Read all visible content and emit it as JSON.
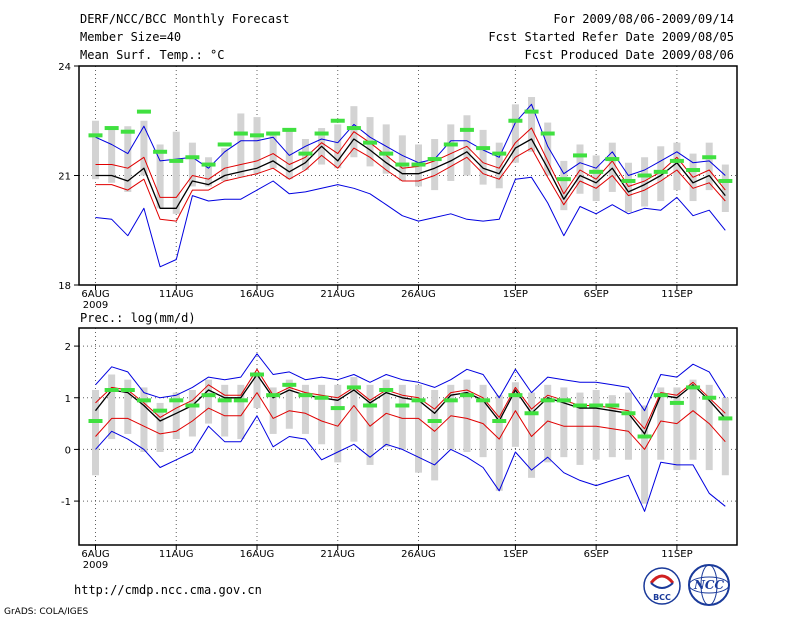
{
  "header": {
    "title": "DERF/NCC/BCC Monthly Forecast",
    "member_size": "Member Size=40",
    "variable": "Mean Surf. Temp.: °C",
    "forecast_range": "For 2009/08/06-2009/09/14",
    "fcst_started": "Fcst Started Refer Date 2009/08/05",
    "fcst_produced": "Fcst Produced Date 2009/08/06"
  },
  "footer": {
    "url": "http://cmdp.ncc.cma.gov.cn",
    "grads": "GrADS: COLA/IGES",
    "logo_bcc": "BCC",
    "logo_ncc": "NCC"
  },
  "colors": {
    "spread": "#d3d3d3",
    "median": "#40e040",
    "mean": "#000000",
    "stddev": "#e00000",
    "extreme": "#0000e0",
    "grid": "#606060"
  },
  "chart_data": [
    {
      "type": "line",
      "title": "Mean Surf. Temp.: °C",
      "ylim": [
        18,
        24
      ],
      "yticks": [
        18,
        21,
        24
      ],
      "ytick_labels": [
        "18",
        "21",
        "24"
      ],
      "xlim": [
        0,
        38
      ],
      "xticks": [
        {
          "day": 0,
          "label": "6AUG",
          "sub": "2009"
        },
        {
          "day": 5,
          "label": "11AUG",
          "sub": ""
        },
        {
          "day": 10,
          "label": "16AUG",
          "sub": ""
        },
        {
          "day": 15,
          "label": "21AUG",
          "sub": ""
        },
        {
          "day": 20,
          "label": "26AUG",
          "sub": ""
        },
        {
          "day": 26,
          "label": "1SEP",
          "sub": ""
        },
        {
          "day": 31,
          "label": "6SEP",
          "sub": ""
        },
        {
          "day": 36,
          "label": "11SEP",
          "sub": ""
        }
      ],
      "days": [
        0,
        1,
        2,
        3,
        4,
        5,
        6,
        7,
        8,
        9,
        10,
        11,
        12,
        13,
        14,
        15,
        16,
        17,
        18,
        19,
        20,
        21,
        22,
        23,
        24,
        25,
        26,
        27,
        28,
        29,
        30,
        31,
        32,
        33,
        34,
        35,
        36,
        37,
        38,
        39
      ],
      "mean": [
        21.0,
        21.0,
        20.85,
        21.2,
        20.1,
        20.1,
        20.85,
        20.75,
        21.0,
        21.1,
        21.2,
        21.4,
        21.1,
        21.35,
        21.8,
        21.4,
        22.0,
        21.7,
        21.35,
        21.05,
        21.05,
        21.2,
        21.4,
        21.65,
        21.2,
        21.05,
        21.75,
        22.0,
        21.2,
        20.35,
        21.0,
        20.8,
        21.2,
        20.55,
        20.75,
        21.0,
        21.35,
        20.8,
        21.0,
        20.45
      ],
      "std_upper": [
        21.3,
        21.3,
        21.2,
        21.5,
        20.4,
        20.4,
        21.0,
        20.9,
        21.2,
        21.3,
        21.4,
        21.6,
        21.3,
        21.5,
        21.9,
        21.6,
        22.2,
        21.9,
        21.55,
        21.2,
        21.25,
        21.4,
        21.6,
        21.8,
        21.35,
        21.2,
        21.9,
        22.3,
        21.4,
        20.5,
        21.15,
        20.9,
        21.4,
        20.7,
        20.85,
        21.1,
        21.5,
        20.95,
        21.15,
        20.6
      ],
      "std_lower": [
        20.75,
        20.75,
        20.6,
        20.9,
        19.8,
        19.75,
        20.6,
        20.6,
        20.85,
        20.95,
        21.05,
        21.2,
        20.9,
        21.15,
        21.55,
        21.2,
        21.75,
        21.5,
        21.15,
        20.85,
        20.85,
        21.0,
        21.25,
        21.5,
        21.05,
        20.9,
        21.5,
        21.75,
        20.95,
        20.2,
        20.85,
        20.65,
        21.0,
        20.45,
        20.6,
        20.85,
        21.15,
        20.65,
        20.8,
        20.3
      ],
      "max": [
        22.05,
        21.85,
        21.6,
        22.35,
        21.4,
        21.45,
        21.5,
        21.2,
        21.65,
        21.95,
        21.95,
        22.05,
        21.55,
        21.8,
        22.0,
        21.9,
        22.4,
        22.05,
        21.8,
        21.55,
        21.35,
        21.45,
        21.95,
        21.95,
        21.7,
        21.5,
        22.45,
        22.95,
        21.8,
        21.05,
        21.35,
        21.2,
        21.65,
        21.0,
        21.15,
        21.4,
        21.65,
        21.35,
        21.4,
        21.0
      ],
      "min": [
        19.85,
        19.8,
        19.35,
        20.1,
        18.5,
        18.7,
        20.45,
        20.3,
        20.35,
        20.35,
        20.6,
        20.85,
        20.5,
        20.55,
        20.65,
        20.75,
        20.65,
        20.5,
        20.2,
        19.9,
        19.75,
        19.85,
        19.95,
        19.8,
        19.75,
        19.8,
        20.9,
        20.95,
        20.25,
        19.35,
        20.15,
        19.95,
        20.2,
        19.95,
        20.1,
        20.05,
        20.4,
        19.9,
        20.05,
        19.5
      ],
      "median": [
        22.1,
        22.3,
        22.2,
        22.75,
        21.65,
        21.4,
        21.5,
        21.3,
        21.85,
        22.15,
        22.1,
        22.15,
        22.25,
        21.6,
        22.15,
        22.5,
        22.3,
        21.9,
        21.6,
        21.3,
        21.3,
        21.45,
        21.85,
        22.25,
        21.75,
        21.6,
        22.5,
        22.75,
        22.15,
        20.9,
        21.55,
        21.1,
        21.45,
        20.85,
        21.0,
        21.1,
        21.4,
        21.15,
        21.5,
        20.85
      ],
      "spread_high": [
        22.5,
        22.3,
        22.35,
        22.5,
        21.85,
        22.2,
        21.9,
        21.5,
        21.75,
        22.7,
        22.6,
        22.2,
        22.3,
        22.0,
        22.3,
        22.4,
        22.9,
        22.6,
        22.4,
        22.1,
        21.85,
        22.0,
        22.4,
        22.65,
        22.25,
        21.9,
        22.95,
        23.15,
        22.45,
        21.4,
        21.85,
        21.55,
        21.9,
        21.35,
        21.5,
        21.8,
        21.9,
        21.6,
        21.9,
        21.3
      ],
      "spread_low": [
        20.9,
        20.8,
        20.55,
        21.0,
        20.1,
        19.95,
        20.7,
        20.7,
        20.85,
        20.95,
        21.05,
        21.2,
        20.9,
        21.15,
        21.3,
        21.2,
        21.5,
        21.25,
        21.05,
        20.85,
        20.7,
        20.6,
        20.85,
        21.0,
        20.75,
        20.65,
        21.35,
        21.65,
        21.0,
        20.05,
        20.5,
        20.3,
        20.55,
        20.0,
        20.15,
        20.3,
        20.6,
        20.3,
        20.6,
        20.0
      ]
    },
    {
      "type": "line",
      "title": "Prec.: log(mm/d)",
      "ylim": [
        -1.85,
        2.35
      ],
      "yticks": [
        -1,
        0,
        1,
        2
      ],
      "ytick_labels": [
        "-1",
        "0",
        "1",
        "2"
      ],
      "xlim": [
        0,
        38
      ],
      "xticks": [
        {
          "day": 0,
          "label": "6AUG",
          "sub": "2009"
        },
        {
          "day": 5,
          "label": "11AUG",
          "sub": ""
        },
        {
          "day": 10,
          "label": "16AUG",
          "sub": ""
        },
        {
          "day": 15,
          "label": "21AUG",
          "sub": ""
        },
        {
          "day": 20,
          "label": "26AUG",
          "sub": ""
        },
        {
          "day": 26,
          "label": "1SEP",
          "sub": ""
        },
        {
          "day": 31,
          "label": "6SEP",
          "sub": ""
        },
        {
          "day": 36,
          "label": "11SEP",
          "sub": ""
        }
      ],
      "days": [
        0,
        1,
        2,
        3,
        4,
        5,
        6,
        7,
        8,
        9,
        10,
        11,
        12,
        13,
        14,
        15,
        16,
        17,
        18,
        19,
        20,
        21,
        22,
        23,
        24,
        25,
        26,
        27,
        28,
        29,
        30,
        31,
        32,
        33,
        34,
        35,
        36,
        37,
        38,
        39
      ],
      "mean": [
        0.75,
        1.15,
        1.1,
        0.85,
        0.55,
        0.7,
        0.85,
        1.15,
        1.0,
        1.0,
        1.45,
        1.0,
        1.15,
        1.05,
        1.0,
        0.95,
        1.15,
        0.9,
        1.1,
        1.0,
        0.95,
        0.7,
        1.05,
        1.1,
        0.95,
        0.55,
        1.15,
        0.7,
        1.0,
        0.9,
        0.8,
        0.8,
        0.75,
        0.7,
        0.3,
        1.05,
        1.0,
        1.25,
        0.95,
        0.6
      ],
      "std_upper": [
        0.9,
        1.2,
        1.15,
        0.9,
        0.62,
        0.8,
        0.95,
        1.25,
        1.05,
        1.05,
        1.55,
        1.05,
        1.2,
        1.1,
        1.05,
        1.0,
        1.2,
        0.95,
        1.15,
        1.05,
        1.0,
        0.78,
        1.1,
        1.15,
        1.0,
        0.62,
        1.2,
        0.78,
        1.05,
        0.95,
        0.85,
        0.85,
        0.8,
        0.75,
        0.4,
        1.1,
        1.05,
        1.3,
        1.0,
        0.7
      ],
      "std_lower": [
        0.25,
        0.6,
        0.6,
        0.45,
        0.3,
        0.35,
        0.55,
        0.8,
        0.65,
        0.65,
        1.1,
        0.6,
        0.75,
        0.7,
        0.55,
        0.45,
        0.85,
        0.45,
        0.7,
        0.6,
        0.6,
        0.35,
        0.65,
        0.6,
        0.5,
        0.2,
        0.75,
        0.25,
        0.55,
        0.45,
        0.45,
        0.45,
        0.4,
        0.35,
        0.0,
        0.55,
        0.5,
        0.75,
        0.5,
        0.15
      ],
      "max": [
        1.25,
        1.6,
        1.5,
        1.1,
        1.0,
        1.05,
        1.2,
        1.4,
        1.35,
        1.4,
        1.85,
        1.45,
        1.5,
        1.35,
        1.4,
        1.35,
        1.45,
        1.3,
        1.45,
        1.35,
        1.3,
        1.2,
        1.35,
        1.55,
        1.45,
        1.0,
        1.55,
        1.1,
        1.4,
        1.35,
        1.3,
        1.3,
        1.25,
        1.2,
        0.75,
        1.45,
        1.4,
        1.65,
        1.5,
        1.0
      ],
      "min": [
        0.0,
        0.35,
        0.2,
        0.0,
        -0.35,
        -0.2,
        -0.05,
        0.45,
        0.15,
        0.15,
        0.65,
        0.05,
        0.25,
        0.2,
        -0.2,
        -0.05,
        0.1,
        -0.15,
        0.1,
        0.0,
        -0.15,
        -0.3,
        0.0,
        -0.15,
        -0.35,
        -0.8,
        -0.05,
        -0.4,
        -0.15,
        -0.45,
        -0.6,
        -0.7,
        -0.6,
        -0.5,
        -1.2,
        -0.25,
        -0.3,
        -0.3,
        -0.85,
        -1.1
      ],
      "median": [
        0.55,
        1.15,
        1.15,
        0.95,
        0.75,
        0.95,
        0.85,
        1.05,
        0.95,
        0.95,
        1.45,
        1.05,
        1.25,
        1.05,
        1.0,
        0.8,
        1.2,
        0.85,
        1.15,
        0.85,
        0.95,
        0.55,
        0.95,
        1.05,
        0.95,
        0.55,
        1.05,
        0.7,
        0.95,
        0.95,
        0.85,
        0.85,
        0.85,
        0.7,
        0.25,
        1.05,
        0.9,
        1.2,
        1.0,
        0.6
      ],
      "spread_high": [
        1.15,
        1.45,
        1.35,
        1.2,
        0.9,
        1.1,
        1.15,
        1.35,
        1.25,
        1.25,
        1.5,
        1.2,
        1.35,
        1.25,
        1.25,
        1.25,
        1.4,
        1.25,
        1.35,
        1.25,
        1.25,
        1.15,
        1.25,
        1.35,
        1.25,
        1.05,
        1.3,
        1.1,
        1.25,
        1.2,
        1.1,
        1.15,
        1.05,
        1.1,
        0.85,
        1.2,
        1.2,
        1.35,
        1.25,
        1.0
      ],
      "spread_low": [
        -0.5,
        0.2,
        0.3,
        -0.05,
        -0.05,
        0.2,
        0.25,
        0.5,
        0.25,
        0.2,
        0.8,
        0.3,
        0.4,
        0.3,
        0.1,
        -0.25,
        0.15,
        -0.3,
        0.05,
        0.0,
        -0.45,
        -0.6,
        0.0,
        -0.05,
        -0.15,
        -0.8,
        0.05,
        -0.55,
        -0.25,
        -0.15,
        -0.3,
        -0.2,
        -0.15,
        -0.2,
        -1.05,
        -0.2,
        -0.4,
        -0.2,
        -0.4,
        -0.5
      ]
    }
  ]
}
